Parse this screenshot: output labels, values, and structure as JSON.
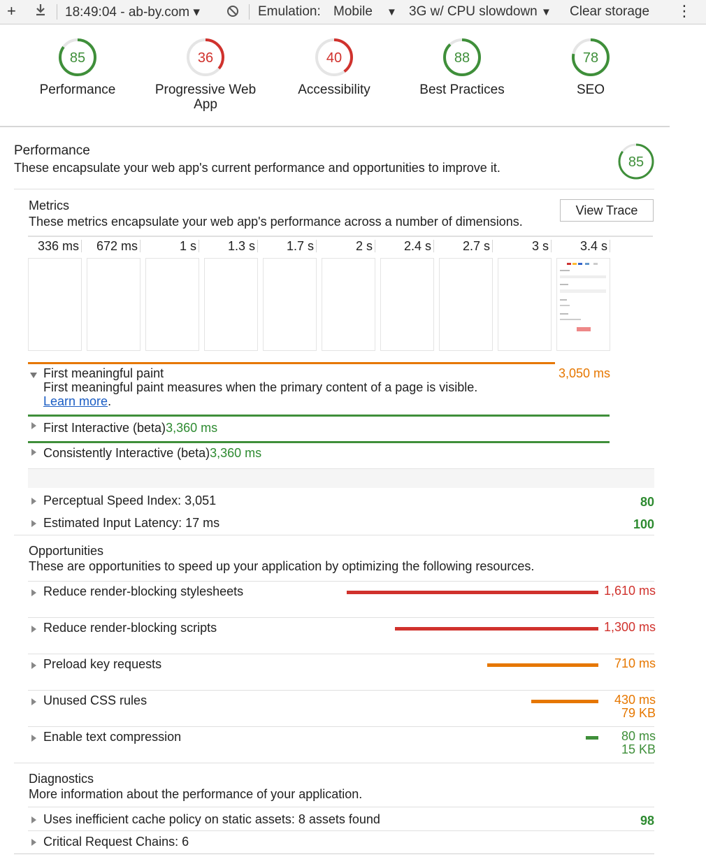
{
  "toolbar": {
    "time_site": "18:49:04 - ab-by.com",
    "emulation_label": "Emulation:",
    "emulation_value": "Mobile",
    "throttle_value": "3G w/ CPU slowdown",
    "clear_storage": "Clear storage"
  },
  "gauges": [
    {
      "score": "85",
      "label": "Performance",
      "color": "#3f8f3a",
      "fraction": 0.85
    },
    {
      "score": "36",
      "label": "Progressive Web App",
      "color": "#d0322d",
      "fraction": 0.36
    },
    {
      "score": "40",
      "label": "Accessibility",
      "color": "#d0322d",
      "fraction": 0.4
    },
    {
      "score": "88",
      "label": "Best Practices",
      "color": "#3f8f3a",
      "fraction": 0.88
    },
    {
      "score": "78",
      "label": "SEO",
      "color": "#3f8f3a",
      "fraction": 0.78
    }
  ],
  "performance": {
    "title": "Performance",
    "description": "These encapsulate your web app's current performance and opportunities to improve it.",
    "score": "85",
    "score_fraction": 0.85
  },
  "metrics": {
    "title": "Metrics",
    "description": "These metrics encapsulate your web app's performance across a number of dimensions.",
    "view_trace": "View Trace",
    "filmstrip": [
      "336 ms",
      "672 ms",
      "1 s",
      "1.3 s",
      "1.7 s",
      "2 s",
      "2.4 s",
      "2.7 s",
      "3 s",
      "3.4 s"
    ],
    "fmp": {
      "label": "First meaningful paint",
      "value": "3,050 ms",
      "fraction": 0.9,
      "description": "First meaningful paint measures when the primary content of a page is visible.",
      "link": "Learn more",
      "period": "."
    },
    "first_interactive": {
      "label": "First Interactive (beta)",
      "value": "3,360 ms"
    },
    "consistently_interactive": {
      "label": "Consistently Interactive (beta)",
      "value": "3,360 ms"
    },
    "speed_index": {
      "label": "Perceptual Speed Index: 3,051",
      "score": "80"
    },
    "input_latency": {
      "label": "Estimated Input Latency: 17 ms",
      "score": "100"
    }
  },
  "opportunities": {
    "title": "Opportunities",
    "description": "These are opportunities to speed up your application by optimizing the following resources.",
    "items": [
      {
        "label": "Reduce render-blocking stylesheets",
        "time": "1,610 ms",
        "size": "",
        "color": "#d0322d"
      },
      {
        "label": "Reduce render-blocking scripts",
        "time": "1,300 ms",
        "size": "",
        "color": "#d0322d"
      },
      {
        "label": "Preload key requests",
        "time": "710 ms",
        "size": "",
        "color": "#e67700"
      },
      {
        "label": "Unused CSS rules",
        "time": "430 ms",
        "size": "79 KB",
        "color": "#e67700"
      },
      {
        "label": "Enable text compression",
        "time": "80 ms",
        "size": "15 KB",
        "color": "#3f8f3a"
      }
    ]
  },
  "diagnostics": {
    "title": "Diagnostics",
    "description": "More information about the performance of your application.",
    "items": [
      {
        "label": "Uses inefficient cache policy on static assets: 8 assets found",
        "score": "98"
      },
      {
        "label": "Critical Request Chains: 6",
        "score": ""
      }
    ]
  }
}
